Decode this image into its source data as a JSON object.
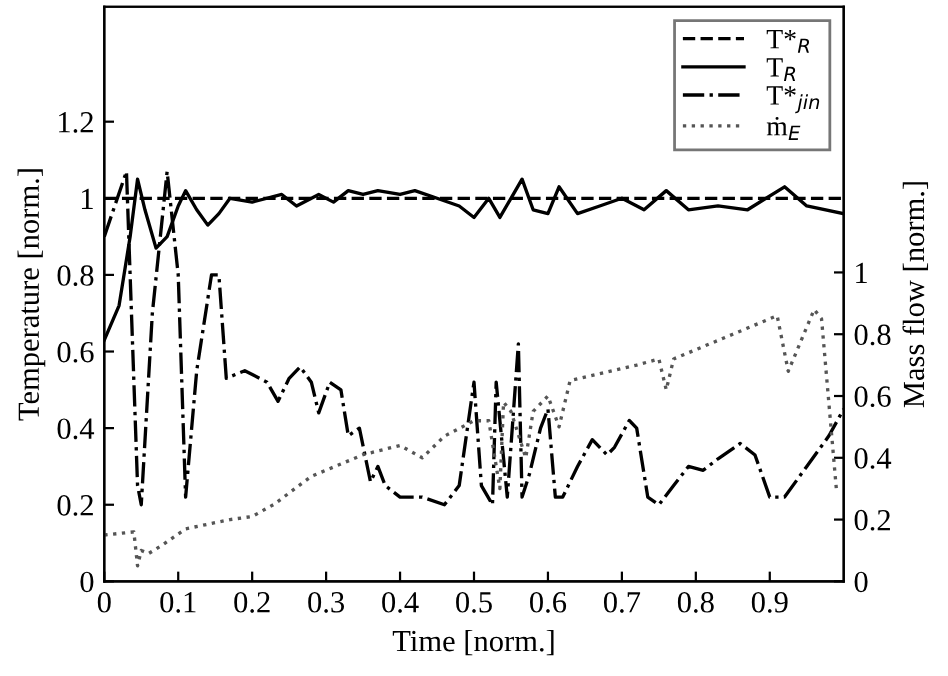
{
  "chart_data": {
    "type": "line",
    "xlabel": "Time [norm.]",
    "ylabel": "Temperature [norm.]",
    "y2label": "Mass flow [norm.]",
    "xlim": [
      0,
      1.0
    ],
    "xticks": [
      0,
      0.1,
      0.2,
      0.3,
      0.4,
      0.5,
      0.6,
      0.7,
      0.8,
      0.9
    ],
    "ylim": [
      0,
      1.5
    ],
    "yticks": [
      0,
      0.2,
      0.4,
      0.6,
      0.8,
      1,
      1.2
    ],
    "y2lim": [
      0,
      1.86
    ],
    "y2ticks": [
      0,
      0.2,
      0.4,
      0.6,
      0.8,
      1
    ],
    "legend": "top right",
    "grid": false,
    "series": [
      {
        "name": "T*$_{R}$",
        "color": "#000000",
        "line_style": "dashed",
        "x": [
          0,
          1.0
        ],
        "values": [
          1,
          1
        ]
      },
      {
        "name": "T$_{R}$",
        "color": "#000000",
        "line_style": "solid",
        "x": [
          0,
          0.02,
          0.035,
          0.045,
          0.055,
          0.07,
          0.085,
          0.1,
          0.11,
          0.125,
          0.14,
          0.155,
          0.17,
          0.2,
          0.24,
          0.26,
          0.29,
          0.31,
          0.33,
          0.35,
          0.37,
          0.4,
          0.42,
          0.45,
          0.48,
          0.5,
          0.52,
          0.535,
          0.55,
          0.565,
          0.58,
          0.6,
          0.615,
          0.64,
          0.67,
          0.7,
          0.73,
          0.76,
          0.79,
          0.83,
          0.87,
          0.92,
          0.95,
          1.0
        ],
        "values": [
          0.63,
          0.72,
          0.9,
          1.05,
          0.97,
          0.87,
          0.9,
          0.98,
          1.02,
          0.97,
          0.93,
          0.96,
          1.0,
          0.99,
          1.01,
          0.98,
          1.01,
          0.99,
          1.02,
          1.01,
          1.02,
          1.01,
          1.02,
          1.0,
          0.98,
          0.95,
          1.0,
          0.95,
          1.0,
          1.05,
          0.97,
          0.96,
          1.03,
          0.96,
          0.98,
          1.0,
          0.97,
          1.02,
          0.97,
          0.98,
          0.97,
          1.03,
          0.98,
          0.96
        ]
      },
      {
        "name": "T*$_{jin}$",
        "color": "#000000",
        "line_style": "dashdot",
        "x": [
          0,
          0.03,
          0.045,
          0.05,
          0.065,
          0.085,
          0.1,
          0.11,
          0.125,
          0.145,
          0.155,
          0.165,
          0.19,
          0.22,
          0.235,
          0.25,
          0.265,
          0.28,
          0.29,
          0.305,
          0.32,
          0.33,
          0.345,
          0.36,
          0.37,
          0.38,
          0.4,
          0.43,
          0.46,
          0.48,
          0.5,
          0.51,
          0.525,
          0.53,
          0.545,
          0.56,
          0.565,
          0.575,
          0.59,
          0.6,
          0.61,
          0.62,
          0.64,
          0.66,
          0.68,
          0.69,
          0.71,
          0.72,
          0.735,
          0.75,
          0.77,
          0.79,
          0.81,
          0.83,
          0.86,
          0.88,
          0.9,
          0.92,
          0.95,
          0.98,
          1.0
        ],
        "values": [
          0.9,
          1.07,
          0.25,
          0.2,
          0.7,
          1.07,
          0.8,
          0.22,
          0.55,
          0.8,
          0.8,
          0.53,
          0.55,
          0.52,
          0.47,
          0.53,
          0.56,
          0.52,
          0.44,
          0.52,
          0.5,
          0.38,
          0.4,
          0.26,
          0.3,
          0.25,
          0.22,
          0.22,
          0.2,
          0.25,
          0.52,
          0.25,
          0.2,
          0.52,
          0.22,
          0.62,
          0.22,
          0.28,
          0.4,
          0.45,
          0.22,
          0.22,
          0.3,
          0.37,
          0.33,
          0.35,
          0.42,
          0.4,
          0.22,
          0.2,
          0.25,
          0.3,
          0.29,
          0.32,
          0.36,
          0.33,
          0.22,
          0.22,
          0.3,
          0.38,
          0.45
        ]
      },
      {
        "name": "ṁ$_{E}$",
        "color": "#555555",
        "line_style": "dotted",
        "axis": "y2",
        "x": [
          0,
          0.04,
          0.045,
          0.05,
          0.06,
          0.08,
          0.11,
          0.17,
          0.2,
          0.23,
          0.28,
          0.31,
          0.35,
          0.4,
          0.43,
          0.46,
          0.5,
          0.52,
          0.535,
          0.54,
          0.55,
          0.57,
          0.58,
          0.6,
          0.615,
          0.63,
          0.72,
          0.75,
          0.76,
          0.77,
          0.85,
          0.91,
          0.925,
          0.96,
          0.97,
          0.99
        ],
        "values": [
          0.15,
          0.16,
          0.05,
          0.1,
          0.09,
          0.12,
          0.17,
          0.2,
          0.21,
          0.25,
          0.34,
          0.37,
          0.41,
          0.44,
          0.4,
          0.47,
          0.52,
          0.52,
          0.3,
          0.58,
          0.55,
          0.4,
          0.55,
          0.6,
          0.5,
          0.65,
          0.7,
          0.72,
          0.62,
          0.72,
          0.8,
          0.86,
          0.68,
          0.88,
          0.85,
          0.3
        ]
      }
    ]
  }
}
